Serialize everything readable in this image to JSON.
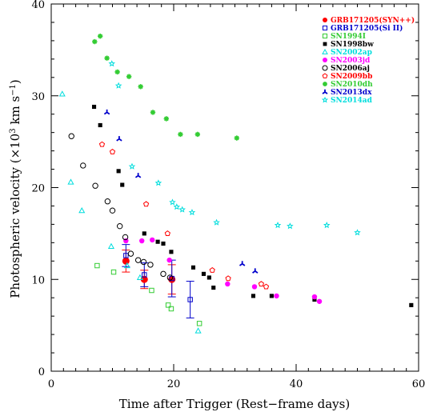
{
  "chart_data": {
    "type": "scatter",
    "title": "",
    "xlabel": "Time after Trigger (Rest−frame days)",
    "ylabel_main": "Photospheric velocity (×10",
    "ylabel_sup": "3",
    "ylabel_tail": " km s",
    "ylabel_sup2": "−1",
    "ylabel_end": ")",
    "xlim": [
      0,
      60
    ],
    "ylim": [
      0,
      40
    ],
    "x_ticks": [
      "0",
      "20",
      "40",
      "60"
    ],
    "y_ticks": [
      "0",
      "10",
      "20",
      "30",
      "40"
    ],
    "grid": false,
    "legend_position": "top-right",
    "series": [
      {
        "name": "GRB171205(SYN++)",
        "marker": "filled-circle",
        "color": "#ff0000",
        "points": [
          [
            12.2,
            12.0
          ],
          [
            15.2,
            10.0
          ],
          [
            19.7,
            10.0
          ]
        ],
        "errors": [
          1.2,
          1.0,
          1.6
        ]
      },
      {
        "name": "GRB171205(Si II)",
        "marker": "open-square",
        "color": "#0000cc",
        "points": [
          [
            12.2,
            12.6
          ],
          [
            15.2,
            10.5
          ],
          [
            19.7,
            10.1
          ],
          [
            22.7,
            7.8
          ]
        ],
        "errors": [
          1.2,
          1.3,
          2.0,
          2.0
        ]
      },
      {
        "name": "SN1994I",
        "marker": "open-square",
        "color": "#33cc33",
        "points": [
          [
            7.5,
            11.5
          ],
          [
            10.2,
            10.8
          ],
          [
            16.4,
            8.8
          ],
          [
            19.1,
            7.2
          ],
          [
            19.6,
            6.8
          ],
          [
            24.2,
            5.2
          ]
        ]
      },
      {
        "name": "SN1998bw",
        "marker": "filled-square",
        "color": "#000000",
        "points": [
          [
            7.0,
            28.8
          ],
          [
            8.0,
            26.8
          ],
          [
            11.0,
            21.8
          ],
          [
            11.6,
            20.3
          ],
          [
            15.2,
            15.0
          ],
          [
            17.4,
            14.1
          ],
          [
            18.3,
            13.9
          ],
          [
            19.6,
            13.0
          ],
          [
            23.2,
            11.3
          ],
          [
            24.9,
            10.6
          ],
          [
            25.8,
            10.2
          ],
          [
            26.5,
            9.1
          ],
          [
            33.0,
            8.2
          ],
          [
            36.0,
            8.2
          ],
          [
            43.0,
            7.8
          ],
          [
            58.8,
            7.2
          ]
        ]
      },
      {
        "name": "SN2002ap",
        "marker": "open-triangle",
        "color": "#00dddd",
        "points": [
          [
            1.8,
            30.2
          ],
          [
            3.2,
            20.6
          ],
          [
            5.0,
            17.5
          ],
          [
            9.8,
            13.6
          ],
          [
            12.4,
            11.5
          ],
          [
            14.5,
            10.2
          ],
          [
            24.0,
            4.4
          ]
        ]
      },
      {
        "name": "SN2003jd",
        "marker": "filled-circle",
        "color": "#ff00ff",
        "points": [
          [
            12.2,
            14.2
          ],
          [
            14.8,
            14.2
          ],
          [
            16.5,
            14.3
          ],
          [
            19.3,
            12.1
          ],
          [
            28.8,
            9.5
          ],
          [
            33.2,
            9.2
          ],
          [
            36.8,
            8.2
          ],
          [
            43.0,
            8.1
          ],
          [
            43.8,
            7.6
          ]
        ]
      },
      {
        "name": "SN2006aj",
        "marker": "open-circle",
        "color": "#000000",
        "points": [
          [
            3.3,
            25.6
          ],
          [
            5.2,
            22.4
          ],
          [
            7.2,
            20.2
          ],
          [
            9.2,
            18.5
          ],
          [
            10.0,
            17.5
          ],
          [
            11.2,
            15.8
          ],
          [
            12.1,
            14.6
          ],
          [
            13.0,
            12.8
          ],
          [
            14.2,
            12.1
          ],
          [
            15.1,
            11.9
          ],
          [
            16.2,
            11.6
          ],
          [
            18.3,
            10.6
          ],
          [
            19.4,
            10.2
          ]
        ]
      },
      {
        "name": "SN2009bb",
        "marker": "open-pentagon",
        "color": "#ff0000",
        "points": [
          [
            8.3,
            24.7
          ],
          [
            10.0,
            23.9
          ],
          [
            15.5,
            18.2
          ],
          [
            19.0,
            15.0
          ],
          [
            26.3,
            11.0
          ],
          [
            28.9,
            10.1
          ],
          [
            34.3,
            9.5
          ],
          [
            35.1,
            9.2
          ]
        ]
      },
      {
        "name": "SN2010dh",
        "marker": "asterisk",
        "color": "#33cc33",
        "points": [
          [
            7.1,
            35.9
          ],
          [
            8.0,
            36.5
          ],
          [
            9.1,
            34.1
          ],
          [
            10.8,
            32.6
          ],
          [
            12.7,
            32.1
          ],
          [
            14.6,
            31.0
          ],
          [
            16.6,
            28.2
          ],
          [
            18.8,
            27.5
          ],
          [
            21.1,
            25.8
          ],
          [
            23.9,
            25.8
          ],
          [
            30.3,
            25.4
          ]
        ]
      },
      {
        "name": "SN2013dx",
        "marker": "filled-tri",
        "color": "#0000cc",
        "points": [
          [
            9.1,
            28.2
          ],
          [
            11.1,
            25.3
          ],
          [
            14.2,
            21.3
          ],
          [
            31.2,
            11.7
          ],
          [
            33.3,
            10.9
          ]
        ]
      },
      {
        "name": "SN2014ad",
        "marker": "open-star",
        "color": "#00dddd",
        "points": [
          [
            9.9,
            33.5
          ],
          [
            11.0,
            31.1
          ],
          [
            13.2,
            22.3
          ],
          [
            17.5,
            20.5
          ],
          [
            19.8,
            18.4
          ],
          [
            20.5,
            17.9
          ],
          [
            21.4,
            17.6
          ],
          [
            23.0,
            17.3
          ],
          [
            27.0,
            16.2
          ],
          [
            37.0,
            15.9
          ],
          [
            39.0,
            15.8
          ],
          [
            45.0,
            15.9
          ],
          [
            50.0,
            15.1
          ]
        ]
      }
    ]
  }
}
